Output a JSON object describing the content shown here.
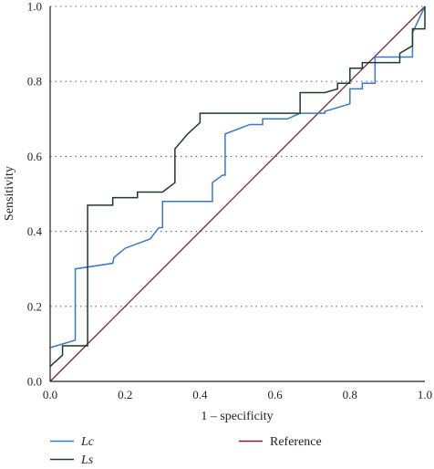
{
  "chart_data": {
    "type": "line",
    "xlabel": "1 – specificity",
    "ylabel": "Sensitivity",
    "xlim": [
      0,
      1
    ],
    "ylim": [
      0,
      1
    ],
    "xticks": [
      "0.0",
      "0.2",
      "0.4",
      "0.6",
      "0.8",
      "1.0"
    ],
    "yticks": [
      "0.0",
      "0.2",
      "0.4",
      "0.6",
      "0.8",
      "1.0"
    ],
    "grid": "horizontal-dotted",
    "legend_position": "bottom",
    "series": [
      {
        "name": "Lc",
        "color": "#3a78c2",
        "points": [
          [
            0.0,
            0.09
          ],
          [
            0.067,
            0.11
          ],
          [
            0.067,
            0.3
          ],
          [
            0.167,
            0.315
          ],
          [
            0.17,
            0.33
          ],
          [
            0.2,
            0.355
          ],
          [
            0.267,
            0.38
          ],
          [
            0.29,
            0.41
          ],
          [
            0.3,
            0.41
          ],
          [
            0.3,
            0.48
          ],
          [
            0.433,
            0.48
          ],
          [
            0.433,
            0.53
          ],
          [
            0.46,
            0.55
          ],
          [
            0.467,
            0.55
          ],
          [
            0.467,
            0.66
          ],
          [
            0.533,
            0.685
          ],
          [
            0.567,
            0.685
          ],
          [
            0.567,
            0.7
          ],
          [
            0.633,
            0.7
          ],
          [
            0.667,
            0.715
          ],
          [
            0.733,
            0.715
          ],
          [
            0.733,
            0.72
          ],
          [
            0.8,
            0.74
          ],
          [
            0.8,
            0.78
          ],
          [
            0.833,
            0.78
          ],
          [
            0.833,
            0.795
          ],
          [
            0.867,
            0.795
          ],
          [
            0.867,
            0.865
          ],
          [
            0.967,
            0.865
          ],
          [
            0.967,
            0.93
          ],
          [
            1.0,
            1.0
          ]
        ]
      },
      {
        "name": "Ls",
        "color": "#1e3a2b",
        "points": [
          [
            0.0,
            0.04
          ],
          [
            0.033,
            0.07
          ],
          [
            0.033,
            0.095
          ],
          [
            0.1,
            0.095
          ],
          [
            0.1,
            0.47
          ],
          [
            0.167,
            0.47
          ],
          [
            0.167,
            0.49
          ],
          [
            0.233,
            0.49
          ],
          [
            0.233,
            0.505
          ],
          [
            0.3,
            0.505
          ],
          [
            0.333,
            0.53
          ],
          [
            0.333,
            0.62
          ],
          [
            0.367,
            0.66
          ],
          [
            0.4,
            0.69
          ],
          [
            0.4,
            0.715
          ],
          [
            0.667,
            0.715
          ],
          [
            0.667,
            0.77
          ],
          [
            0.733,
            0.77
          ],
          [
            0.767,
            0.78
          ],
          [
            0.767,
            0.795
          ],
          [
            0.8,
            0.795
          ],
          [
            0.8,
            0.835
          ],
          [
            0.833,
            0.835
          ],
          [
            0.833,
            0.85
          ],
          [
            0.933,
            0.85
          ],
          [
            0.933,
            0.875
          ],
          [
            0.967,
            0.895
          ],
          [
            0.967,
            0.94
          ],
          [
            1.0,
            0.94
          ],
          [
            1.0,
            1.0
          ]
        ]
      },
      {
        "name": "Reference",
        "color": "#7a1f3a",
        "points": [
          [
            0,
            0
          ],
          [
            1,
            1
          ]
        ]
      }
    ]
  }
}
